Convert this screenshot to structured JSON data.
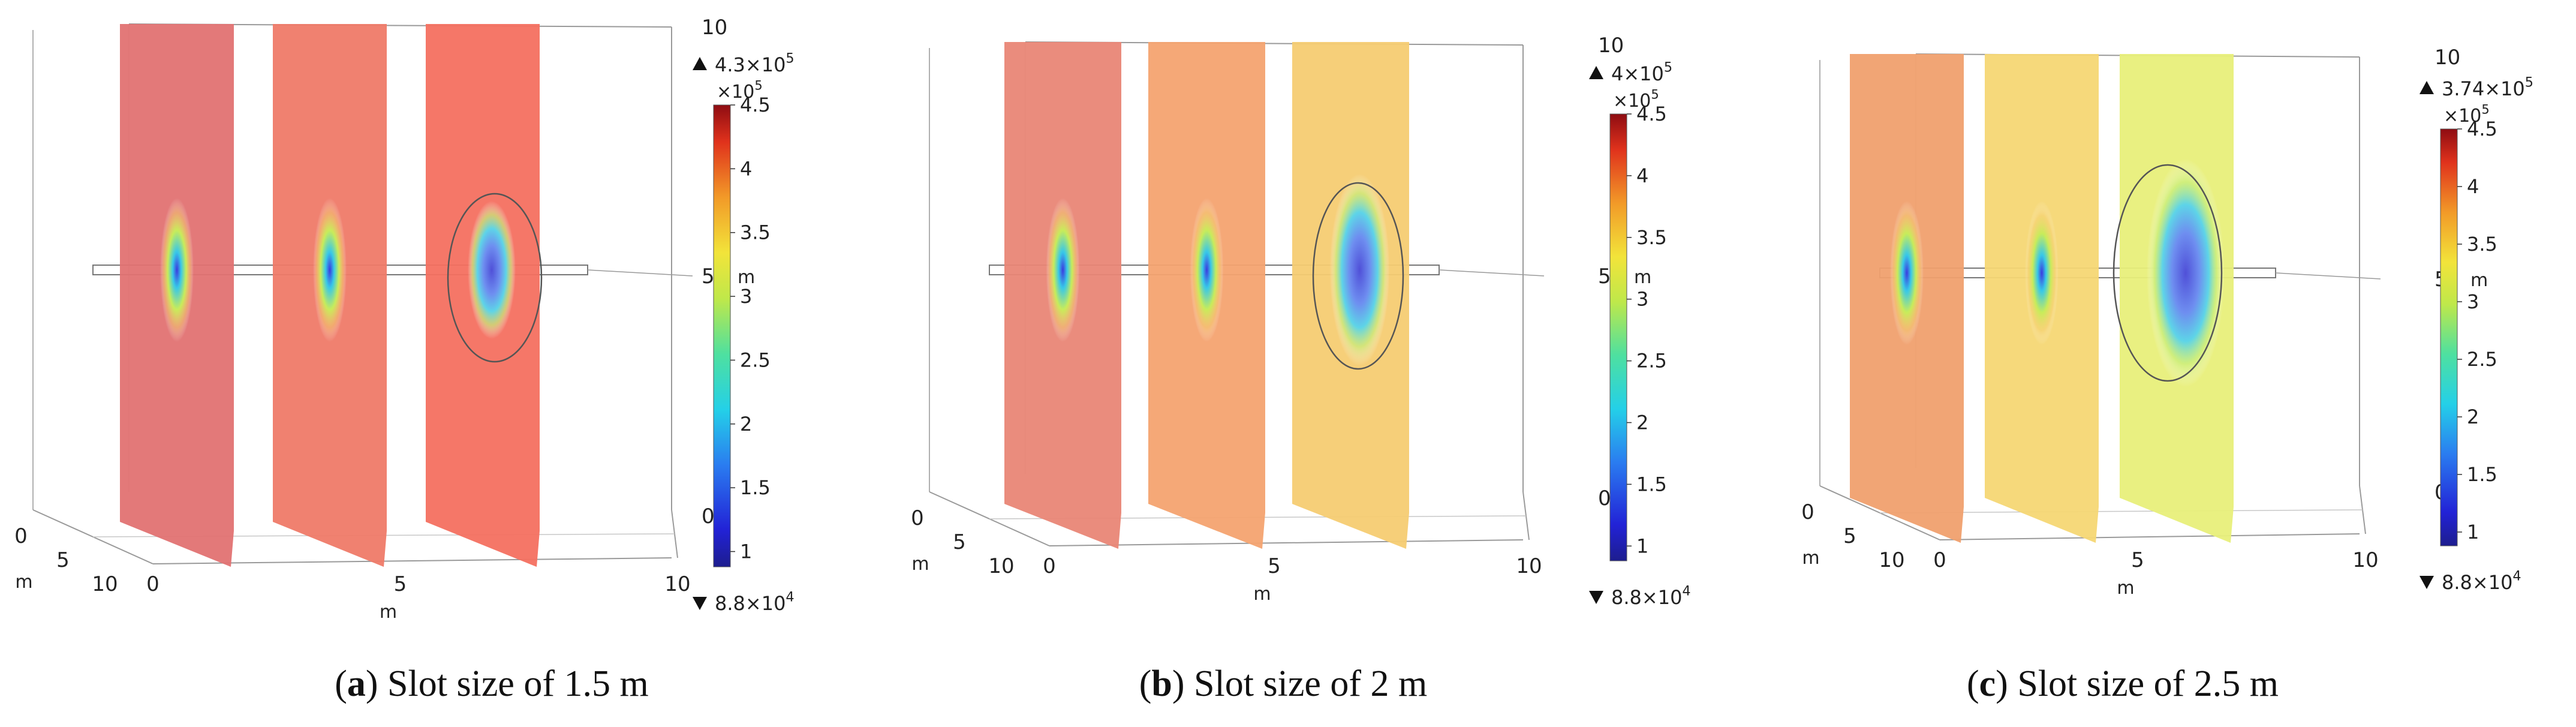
{
  "chart_data": [
    {
      "id": "a",
      "type": "heatmap",
      "caption_letter": "a",
      "caption_text": "Slot size of 1.5 m",
      "max_label": "4.3×10",
      "max_exp": "5",
      "min_label": "8.8×10",
      "min_exp": "4",
      "colorbar_multiplier": "×10",
      "colorbar_multiplier_exp": "5",
      "colorbar_range": [
        0.88,
        4.5
      ],
      "colorbar_ticks": [
        "4.5",
        "4",
        "3.5",
        "3",
        "2.5",
        "2",
        "1.5",
        "1"
      ],
      "z_ticks": [
        "10",
        "5",
        "0"
      ],
      "z_unit": "m",
      "x_ticks": [
        "0",
        "5",
        "10"
      ],
      "x_unit": "m",
      "y_ticks": [
        "0",
        "5",
        "10"
      ],
      "y_unit": "m",
      "plane_colors": [
        "#e27272",
        "#ef7a68",
        "#f47060"
      ]
    },
    {
      "id": "b",
      "type": "heatmap",
      "caption_letter": "b",
      "caption_text": "Slot size of 2 m",
      "max_label": "4×10",
      "max_exp": "5",
      "min_label": "8.8×10",
      "min_exp": "4",
      "colorbar_multiplier": "×10",
      "colorbar_multiplier_exp": "5",
      "colorbar_range": [
        0.88,
        4.5
      ],
      "colorbar_ticks": [
        "4.5",
        "4",
        "3.5",
        "3",
        "2.5",
        "2",
        "1.5",
        "1"
      ],
      "z_ticks": [
        "10",
        "5",
        "0"
      ],
      "z_unit": "m",
      "x_ticks": [
        "0",
        "5",
        "10"
      ],
      "x_unit": "m",
      "y_ticks": [
        "0",
        "5",
        "10"
      ],
      "y_unit": "m",
      "plane_colors": [
        "#e98676",
        "#f4a370",
        "#f6cc72"
      ]
    },
    {
      "id": "c",
      "type": "heatmap",
      "caption_letter": "c",
      "caption_text": "Slot size of 2.5 m",
      "max_label": "3.74×10",
      "max_exp": "5",
      "min_label": "8.8×10",
      "min_exp": "4",
      "colorbar_multiplier": "×10",
      "colorbar_multiplier_exp": "5",
      "colorbar_range": [
        0.88,
        4.5
      ],
      "colorbar_ticks": [
        "4.5",
        "4",
        "3.5",
        "3",
        "2.5",
        "2",
        "1.5",
        "1"
      ],
      "z_ticks": [
        "10",
        "5",
        "0"
      ],
      "z_unit": "m",
      "x_ticks": [
        "0",
        "5",
        "10"
      ],
      "x_unit": "m",
      "y_ticks": [
        "0",
        "5",
        "10"
      ],
      "y_unit": "m",
      "plane_colors": [
        "#f0a06e",
        "#f6d774",
        "#e8ef7a"
      ]
    }
  ]
}
